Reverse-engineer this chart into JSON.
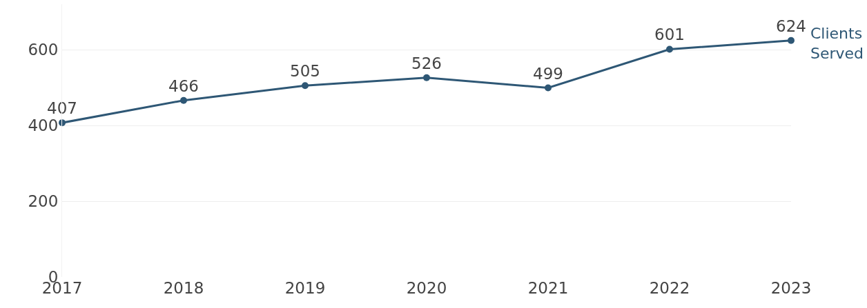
{
  "chart_data": {
    "type": "line",
    "x": [
      2017,
      2018,
      2019,
      2020,
      2021,
      2022,
      2023
    ],
    "series": [
      {
        "name": "Clients Served",
        "color": "#2e5775",
        "values": [
          407,
          466,
          505,
          526,
          499,
          601,
          624
        ]
      }
    ],
    "xlim": [
      2017,
      2023
    ],
    "xticks": [
      2017,
      2018,
      2019,
      2020,
      2021,
      2022,
      2023
    ],
    "ylim": [
      0,
      720
    ],
    "yticks": [
      0,
      200,
      400,
      600
    ],
    "grid": "y",
    "data_labels": true,
    "marker": "circle",
    "line_style": "solid",
    "legend": false
  }
}
